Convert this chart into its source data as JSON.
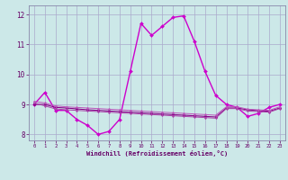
{
  "xlabel": "Windchill (Refroidissement éolien,°C)",
  "background_color": "#cce8e8",
  "grid_color": "#aaaacc",
  "xlim": [
    -0.5,
    23.5
  ],
  "ylim": [
    7.8,
    12.3
  ],
  "yticks": [
    8,
    9,
    10,
    11,
    12
  ],
  "xticks": [
    0,
    1,
    2,
    3,
    4,
    5,
    6,
    7,
    8,
    9,
    10,
    11,
    12,
    13,
    14,
    15,
    16,
    17,
    18,
    19,
    20,
    21,
    22,
    23
  ],
  "series": [
    {
      "x": [
        0,
        1,
        2,
        3,
        4,
        5,
        6,
        7,
        8,
        9,
        10,
        11,
        12,
        13,
        14,
        15,
        16,
        17,
        18,
        19,
        20,
        21,
        22,
        23
      ],
      "y": [
        9.0,
        9.4,
        8.8,
        8.8,
        8.5,
        8.3,
        8.0,
        8.1,
        8.5,
        10.1,
        11.7,
        11.3,
        11.6,
        11.9,
        11.95,
        11.1,
        10.1,
        9.3,
        9.0,
        8.9,
        8.6,
        8.7,
        8.9,
        9.0
      ],
      "color": "#cc00cc",
      "linewidth": 1.0,
      "marker": "D",
      "markersize": 2.0
    },
    {
      "x": [
        0,
        1,
        2,
        3,
        4,
        5,
        6,
        7,
        8,
        9,
        10,
        11,
        12,
        13,
        14,
        15,
        16,
        17,
        18,
        19,
        20,
        21,
        22,
        23
      ],
      "y": [
        9.0,
        9.0,
        8.9,
        8.88,
        8.85,
        8.82,
        8.8,
        8.78,
        8.76,
        8.74,
        8.72,
        8.7,
        8.68,
        8.66,
        8.64,
        8.62,
        8.6,
        8.58,
        8.88,
        8.88,
        8.82,
        8.79,
        8.77,
        8.88
      ],
      "color": "#880088",
      "linewidth": 0.8,
      "marker": "D",
      "markersize": 1.5
    },
    {
      "x": [
        0,
        1,
        2,
        3,
        4,
        5,
        6,
        7,
        8,
        9,
        10,
        11,
        12,
        13,
        14,
        15,
        16,
        17,
        18,
        19,
        20,
        21,
        22,
        23
      ],
      "y": [
        9.05,
        8.95,
        8.85,
        8.82,
        8.8,
        8.78,
        8.76,
        8.74,
        8.72,
        8.7,
        8.68,
        8.66,
        8.64,
        8.62,
        8.6,
        8.58,
        8.56,
        8.54,
        8.86,
        8.86,
        8.78,
        8.76,
        8.74,
        8.86
      ],
      "color": "#aa44aa",
      "linewidth": 0.7,
      "marker": "D",
      "markersize": 1.2
    },
    {
      "x": [
        0,
        1,
        2,
        3,
        4,
        5,
        6,
        7,
        8,
        9,
        10,
        11,
        12,
        13,
        14,
        15,
        16,
        17,
        18,
        19,
        20,
        21,
        22,
        23
      ],
      "y": [
        9.1,
        9.05,
        8.95,
        8.92,
        8.9,
        8.88,
        8.86,
        8.84,
        8.82,
        8.8,
        8.78,
        8.76,
        8.74,
        8.72,
        8.7,
        8.68,
        8.66,
        8.64,
        8.92,
        8.92,
        8.84,
        8.82,
        8.8,
        8.92
      ],
      "color": "#bb55bb",
      "linewidth": 0.7,
      "marker": "D",
      "markersize": 1.2
    }
  ]
}
